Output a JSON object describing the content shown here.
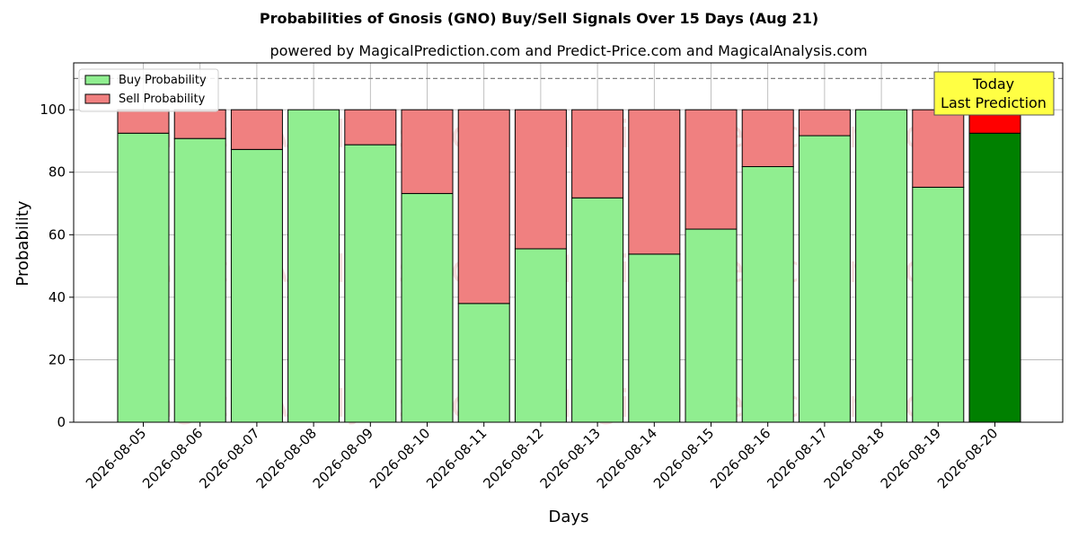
{
  "chart_data": {
    "type": "bar",
    "stacked": true,
    "title": "Probabilities of Gnosis (GNO) Buy/Sell Signals Over 15 Days (Aug 21)",
    "subtitle": "powered by MagicalPrediction.com and Predict-Price.com and MagicalAnalysis.com",
    "xlabel": "Days",
    "ylabel": "Probability",
    "ylim": [
      0,
      115
    ],
    "yticks": [
      0,
      20,
      40,
      60,
      80,
      100
    ],
    "grid": true,
    "legend_position": "top-left",
    "reference_line": 110,
    "categories": [
      "2026-08-05",
      "2026-08-06",
      "2026-08-07",
      "2026-08-08",
      "2026-08-09",
      "2026-08-10",
      "2026-08-11",
      "2026-08-12",
      "2026-08-13",
      "2026-08-14",
      "2026-08-15",
      "2026-08-16",
      "2026-08-17",
      "2026-08-18",
      "2026-08-19",
      "2026-08-20"
    ],
    "series": [
      {
        "name": "Buy Probability",
        "color": "#90ee90",
        "values": [
          92.5,
          90.8,
          87.3,
          100,
          88.8,
          73.2,
          38.0,
          55.5,
          71.8,
          53.8,
          61.8,
          81.8,
          91.7,
          100,
          75.2,
          92.5
        ]
      },
      {
        "name": "Sell Probability",
        "color": "#f08080",
        "values": [
          7.5,
          9.2,
          12.7,
          0,
          11.2,
          26.8,
          62.0,
          44.5,
          28.2,
          46.2,
          38.2,
          18.2,
          8.3,
          0,
          24.8,
          7.5
        ]
      }
    ],
    "highlight": {
      "index": 15,
      "buy_color": "#008000",
      "sell_color": "#ff0000"
    },
    "annotation": {
      "line1": "Today",
      "line2": "Last Prediction",
      "background": "#ffff44"
    },
    "watermarks": [
      "MagicalAnalysis.com",
      "MagicalPrediction.com"
    ]
  }
}
